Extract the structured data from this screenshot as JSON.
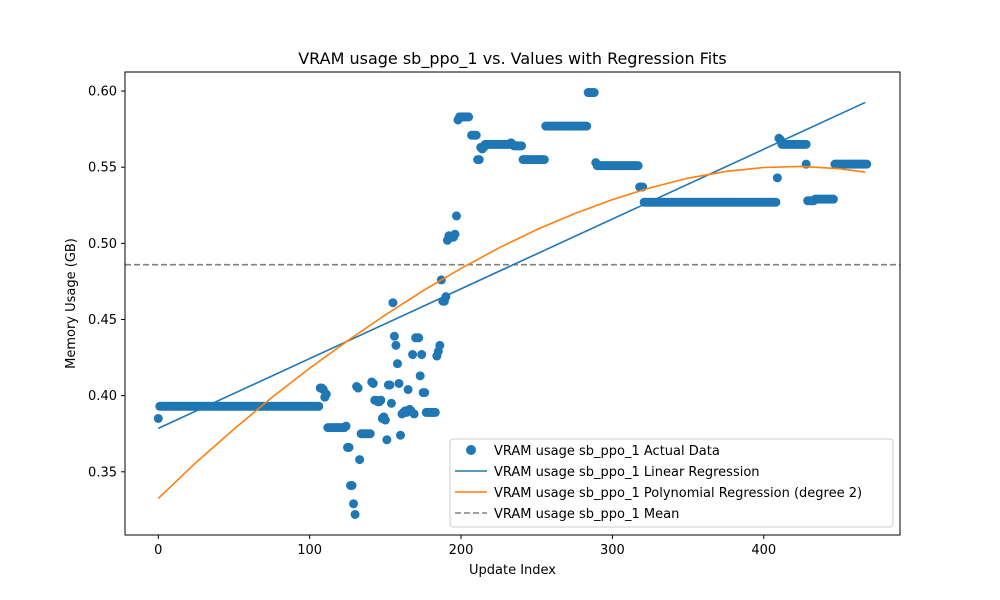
{
  "chart_data": {
    "type": "scatter",
    "title": "VRAM usage sb_ppo_1 vs. Values with Regression Fits",
    "xlabel": "Update Index",
    "ylabel": "Memory Usage (GB)",
    "xlim": [
      -22,
      490
    ],
    "ylim": [
      0.3085,
      0.6125
    ],
    "x_ticks": [
      0,
      100,
      200,
      300,
      400
    ],
    "y_ticks": [
      0.35,
      0.4,
      0.45,
      0.5,
      0.55,
      0.6
    ],
    "x_tick_labels": [
      "0",
      "100",
      "200",
      "300",
      "400"
    ],
    "y_tick_labels": [
      "0.35",
      "0.40",
      "0.45",
      "0.50",
      "0.55",
      "0.60"
    ],
    "grid": false,
    "legend_position": "lower-right",
    "series": [
      {
        "name": "VRAM usage sb_ppo_1 Actual Data",
        "kind": "scatter",
        "color": "#1f77b4",
        "segments": [
          {
            "x_start": 1,
            "x_end": 106,
            "y": 0.393
          },
          {
            "x_start": 112,
            "x_end": 123,
            "y": 0.379
          },
          {
            "x_start": 135,
            "x_end": 140,
            "y": 0.375
          },
          {
            "x_start": 199,
            "x_end": 205,
            "y": 0.583
          },
          {
            "x_start": 207,
            "x_end": 210,
            "y": 0.571
          },
          {
            "x_start": 216,
            "x_end": 232,
            "y": 0.565
          },
          {
            "x_start": 235,
            "x_end": 240,
            "y": 0.564
          },
          {
            "x_start": 241,
            "x_end": 255,
            "y": 0.555
          },
          {
            "x_start": 256,
            "x_end": 283,
            "y": 0.577
          },
          {
            "x_start": 284,
            "x_end": 288,
            "y": 0.599
          },
          {
            "x_start": 290,
            "x_end": 317,
            "y": 0.551
          },
          {
            "x_start": 318,
            "x_end": 320,
            "y": 0.537
          },
          {
            "x_start": 321,
            "x_end": 408,
            "y": 0.527
          },
          {
            "x_start": 412,
            "x_end": 428,
            "y": 0.565
          },
          {
            "x_start": 429,
            "x_end": 433,
            "y": 0.528
          },
          {
            "x_start": 434,
            "x_end": 446,
            "y": 0.529
          },
          {
            "x_start": 447,
            "x_end": 468,
            "y": 0.552
          }
        ],
        "points": [
          [
            0,
            0.385
          ],
          [
            107,
            0.405
          ],
          [
            108,
            0.405
          ],
          [
            109,
            0.404
          ],
          [
            110,
            0.399
          ],
          [
            111,
            0.401
          ],
          [
            124,
            0.38
          ],
          [
            125,
            0.366
          ],
          [
            126,
            0.366
          ],
          [
            127,
            0.341
          ],
          [
            128,
            0.341
          ],
          [
            129,
            0.329
          ],
          [
            130,
            0.322
          ],
          [
            131,
            0.406
          ],
          [
            132,
            0.405
          ],
          [
            133,
            0.358
          ],
          [
            134,
            0.375
          ],
          [
            141,
            0.409
          ],
          [
            142,
            0.408
          ],
          [
            143,
            0.397
          ],
          [
            144,
            0.397
          ],
          [
            145,
            0.396
          ],
          [
            146,
            0.396
          ],
          [
            147,
            0.397
          ],
          [
            148,
            0.385
          ],
          [
            149,
            0.386
          ],
          [
            150,
            0.384
          ],
          [
            151,
            0.371
          ],
          [
            152,
            0.407
          ],
          [
            153,
            0.407
          ],
          [
            154,
            0.395
          ],
          [
            155,
            0.461
          ],
          [
            156,
            0.439
          ],
          [
            157,
            0.433
          ],
          [
            158,
            0.421
          ],
          [
            159,
            0.408
          ],
          [
            160,
            0.374
          ],
          [
            161,
            0.388
          ],
          [
            162,
            0.389
          ],
          [
            163,
            0.39
          ],
          [
            164,
            0.389
          ],
          [
            165,
            0.404
          ],
          [
            166,
            0.391
          ],
          [
            167,
            0.39
          ],
          [
            168,
            0.427
          ],
          [
            169,
            0.388
          ],
          [
            170,
            0.438
          ],
          [
            171,
            0.438
          ],
          [
            172,
            0.438
          ],
          [
            173,
            0.413
          ],
          [
            174,
            0.427
          ],
          [
            175,
            0.402
          ],
          [
            176,
            0.402
          ],
          [
            177,
            0.389
          ],
          [
            178,
            0.389
          ],
          [
            179,
            0.389
          ],
          [
            180,
            0.389
          ],
          [
            181,
            0.389
          ],
          [
            182,
            0.389
          ],
          [
            183,
            0.389
          ],
          [
            184,
            0.426
          ],
          [
            185,
            0.429
          ],
          [
            186,
            0.433
          ],
          [
            187,
            0.476
          ],
          [
            188,
            0.462
          ],
          [
            189,
            0.462
          ],
          [
            190,
            0.465
          ],
          [
            191,
            0.502
          ],
          [
            192,
            0.505
          ],
          [
            193,
            0.504
          ],
          [
            194,
            0.504
          ],
          [
            195,
            0.504
          ],
          [
            196,
            0.506
          ],
          [
            197,
            0.518
          ],
          [
            198,
            0.581
          ],
          [
            211,
            0.555
          ],
          [
            212,
            0.555
          ],
          [
            213,
            0.563
          ],
          [
            214,
            0.562
          ],
          [
            215,
            0.563
          ],
          [
            233,
            0.566
          ],
          [
            234,
            0.565
          ],
          [
            289,
            0.553
          ],
          [
            409,
            0.543
          ],
          [
            410,
            0.569
          ],
          [
            411,
            0.568
          ],
          [
            428,
            0.552
          ]
        ]
      },
      {
        "name": "VRAM usage sb_ppo_1 Linear Regression",
        "kind": "line",
        "color": "#1f77b4",
        "x": [
          0,
          467
        ],
        "y": [
          0.3785,
          0.5925
        ]
      },
      {
        "name": "VRAM usage sb_ppo_1 Polynomial Regression (degree 2)",
        "kind": "line",
        "color": "#ff7f0e",
        "x": [
          0,
          25,
          50,
          75,
          100,
          125,
          150,
          175,
          200,
          225,
          250,
          275,
          300,
          325,
          350,
          375,
          400,
          425,
          450,
          467
        ],
        "y": [
          0.3325,
          0.3562,
          0.378,
          0.3988,
          0.418,
          0.436,
          0.453,
          0.469,
          0.4835,
          0.497,
          0.509,
          0.5195,
          0.5287,
          0.5365,
          0.5428,
          0.5472,
          0.5498,
          0.5505,
          0.549,
          0.5467
        ]
      },
      {
        "name": "VRAM usage sb_ppo_1 Mean",
        "kind": "hline",
        "color": "#808080",
        "y": 0.486
      }
    ]
  }
}
